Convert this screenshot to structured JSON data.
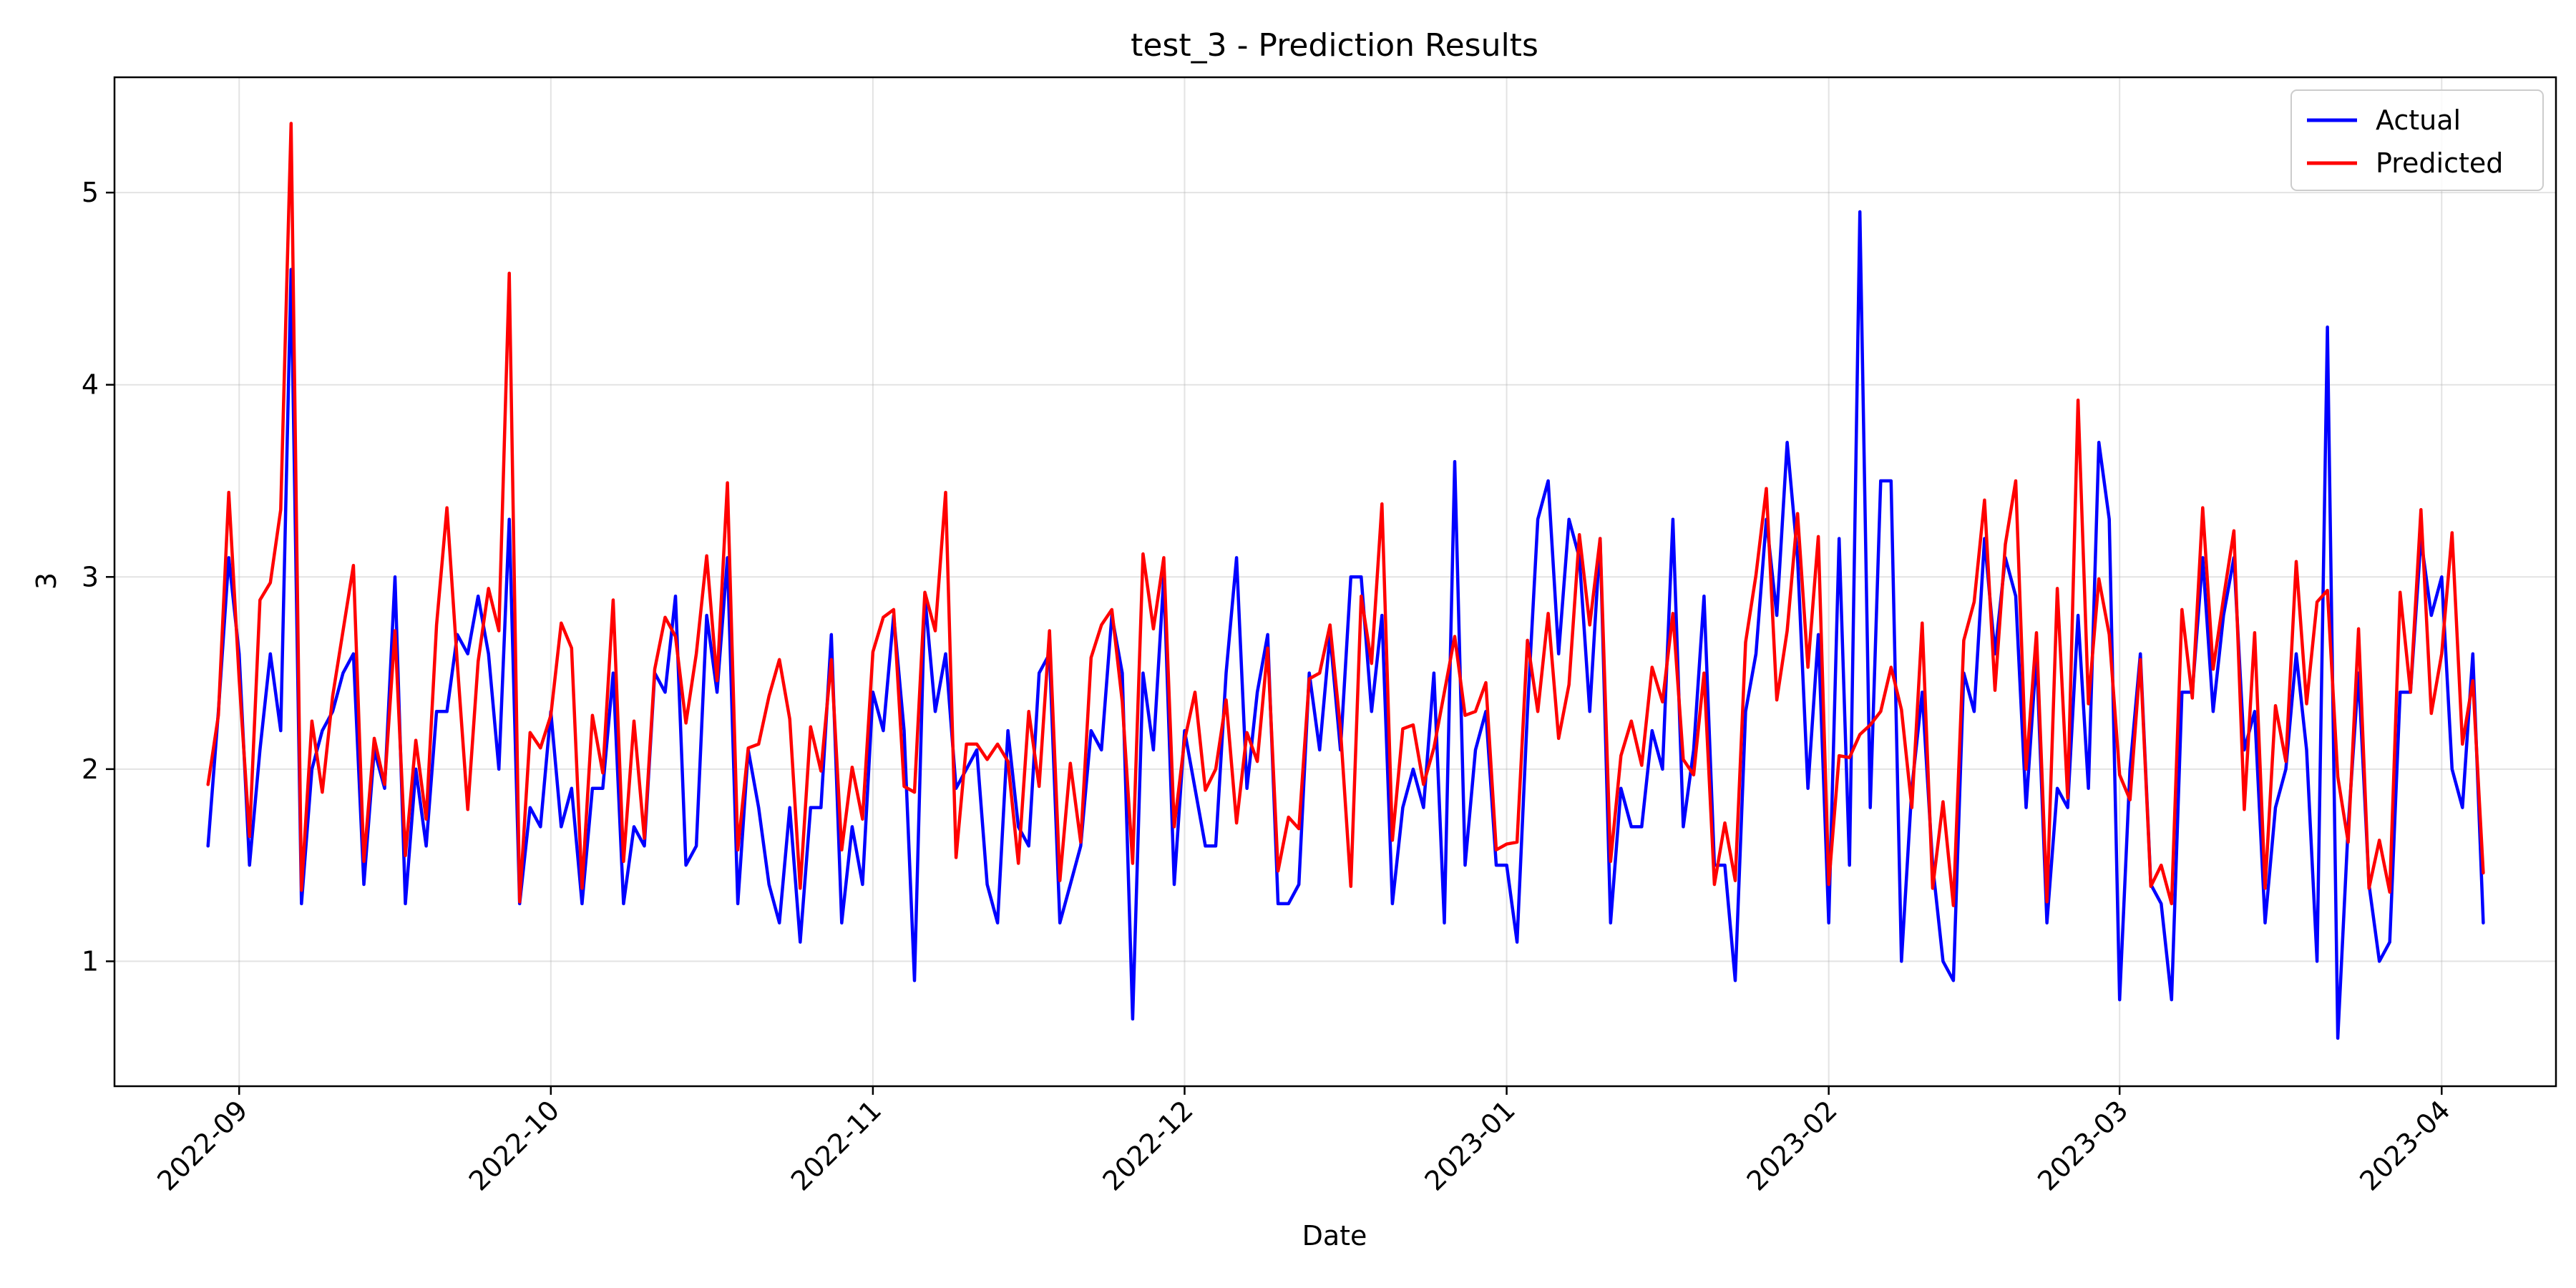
{
  "chart_data": {
    "type": "line",
    "title": "test_3 - Prediction Results",
    "xlabel": "Date",
    "ylabel": "3",
    "x_start": "2022-08-29",
    "x_ticks": [
      "2022-09",
      "2022-10",
      "2022-11",
      "2022-12",
      "2023-01",
      "2023-02",
      "2023-03",
      "2023-04"
    ],
    "x_tick_dates": [
      "2022-09-01",
      "2022-10-01",
      "2022-11-01",
      "2022-12-01",
      "2023-01-01",
      "2023-02-01",
      "2023-03-01",
      "2023-04-01"
    ],
    "y_ticks": [
      1,
      2,
      3,
      4,
      5
    ],
    "xlim": [
      "2022-08-20",
      "2023-04-12"
    ],
    "ylim": [
      0.35,
      5.6
    ],
    "grid": true,
    "legend_position": "top-right",
    "series": [
      {
        "name": "Actual",
        "color": "#0000ff",
        "values": [
          1.6,
          2.3,
          3.1,
          2.6,
          1.5,
          2.1,
          2.6,
          2.2,
          4.6,
          1.3,
          2.0,
          2.2,
          2.3,
          2.5,
          2.6,
          1.4,
          2.1,
          1.9,
          3.0,
          1.3,
          2.0,
          1.6,
          2.3,
          2.3,
          2.7,
          2.6,
          2.9,
          2.6,
          2.0,
          3.3,
          1.3,
          1.8,
          1.7,
          2.3,
          1.7,
          1.9,
          1.3,
          1.9,
          1.9,
          2.5,
          1.3,
          1.7,
          1.6,
          2.5,
          2.4,
          2.9,
          1.5,
          1.6,
          2.8,
          2.4,
          3.1,
          1.3,
          2.1,
          1.8,
          1.4,
          1.2,
          1.8,
          1.1,
          1.8,
          1.8,
          2.7,
          1.2,
          1.7,
          1.4,
          2.4,
          2.2,
          2.8,
          2.2,
          0.9,
          2.9,
          2.3,
          2.6,
          1.9,
          2.0,
          2.1,
          1.4,
          1.2,
          2.2,
          1.7,
          1.6,
          2.5,
          2.6,
          1.2,
          1.4,
          1.6,
          2.2,
          2.1,
          2.8,
          2.5,
          0.7,
          2.5,
          2.1,
          3.0,
          1.4,
          2.2,
          1.9,
          1.6,
          1.6,
          2.5,
          3.1,
          1.9,
          2.4,
          2.7,
          1.3,
          1.3,
          1.4,
          2.5,
          2.1,
          2.7,
          2.1,
          3.0,
          3.0,
          2.3,
          2.8,
          1.3,
          1.8,
          2.0,
          1.8,
          2.5,
          1.2,
          3.6,
          1.5,
          2.1,
          2.3,
          1.5,
          1.5,
          1.1,
          2.3,
          3.3,
          3.5,
          2.6,
          3.3,
          3.1,
          2.3,
          3.2,
          1.2,
          1.9,
          1.7,
          1.7,
          2.2,
          2.0,
          3.3,
          1.7,
          2.1,
          2.9,
          1.5,
          1.5,
          0.9,
          2.3,
          2.6,
          3.3,
          2.8,
          3.7,
          3.1,
          1.9,
          2.7,
          1.2,
          3.2,
          1.5,
          4.9,
          1.8,
          3.5,
          3.5,
          1.0,
          1.9,
          2.4,
          1.5,
          1.0,
          0.9,
          2.5,
          2.3,
          3.2,
          2.6,
          3.1,
          2.9,
          1.8,
          2.6,
          1.2,
          1.9,
          1.8,
          2.8,
          1.9,
          3.7,
          3.3,
          0.8,
          2.0,
          2.6,
          1.4,
          1.3,
          0.8,
          2.4,
          2.4,
          3.1,
          2.3,
          2.8,
          3.1,
          2.1,
          2.3,
          1.2,
          1.8,
          2.0,
          2.6,
          2.1,
          1.0,
          4.3,
          0.6,
          1.7,
          2.5,
          1.4,
          1.0,
          1.1,
          2.4,
          2.4,
          3.2,
          2.8,
          3.0,
          2.0,
          1.8,
          2.6,
          1.2
        ]
      },
      {
        "name": "Predicted",
        "color": "#ff0000",
        "values": [
          1.92,
          2.28,
          3.44,
          2.47,
          1.65,
          2.88,
          2.97,
          3.35,
          5.36,
          1.37,
          2.25,
          1.88,
          2.38,
          2.72,
          3.06,
          1.52,
          2.16,
          1.92,
          2.72,
          1.55,
          2.15,
          1.74,
          2.75,
          3.36,
          2.55,
          1.79,
          2.56,
          2.94,
          2.72,
          4.58,
          1.31,
          2.19,
          2.11,
          2.28,
          2.76,
          2.63,
          1.38,
          2.28,
          1.98,
          2.88,
          1.52,
          2.25,
          1.64,
          2.52,
          2.79,
          2.69,
          2.24,
          2.6,
          3.11,
          2.46,
          3.49,
          1.58,
          2.11,
          2.13,
          2.38,
          2.57,
          2.26,
          1.38,
          2.22,
          1.99,
          2.57,
          1.58,
          2.01,
          1.74,
          2.61,
          2.79,
          2.83,
          1.91,
          1.88,
          2.92,
          2.72,
          3.44,
          1.54,
          2.13,
          2.13,
          2.05,
          2.13,
          2.04,
          1.51,
          2.3,
          1.91,
          2.72,
          1.42,
          2.03,
          1.62,
          2.58,
          2.75,
          2.83,
          2.35,
          1.51,
          3.12,
          2.73,
          3.1,
          1.7,
          2.15,
          2.4,
          1.89,
          2.0,
          2.36,
          1.72,
          2.19,
          2.04,
          2.63,
          1.47,
          1.75,
          1.69,
          2.47,
          2.5,
          2.75,
          2.21,
          1.39,
          2.9,
          2.55,
          3.38,
          1.63,
          2.21,
          2.23,
          1.92,
          2.11,
          2.4,
          2.69,
          2.28,
          2.3,
          2.45,
          1.58,
          1.61,
          1.62,
          2.67,
          2.3,
          2.81,
          2.16,
          2.44,
          3.22,
          2.75,
          3.2,
          1.52,
          2.07,
          2.25,
          2.02,
          2.53,
          2.35,
          2.81,
          2.05,
          1.97,
          2.5,
          1.4,
          1.72,
          1.42,
          2.66,
          3.01,
          3.46,
          2.36,
          2.72,
          3.33,
          2.53,
          3.21,
          1.4,
          2.07,
          2.06,
          2.18,
          2.23,
          2.3,
          2.53,
          2.31,
          1.8,
          2.76,
          1.38,
          1.83,
          1.29,
          2.67,
          2.87,
          3.4,
          2.41,
          3.17,
          3.5,
          2.0,
          2.71,
          1.31,
          2.94,
          1.85,
          3.92,
          2.34,
          2.99,
          2.7,
          1.97,
          1.84,
          2.57,
          1.39,
          1.5,
          1.3,
          2.83,
          2.37,
          3.36,
          2.52,
          2.89,
          3.24,
          1.79,
          2.71,
          1.38,
          2.33,
          2.04,
          3.08,
          2.34,
          2.87,
          2.93,
          1.96,
          1.62,
          2.73,
          1.38,
          1.63,
          1.36,
          2.92,
          2.4,
          3.35,
          2.29,
          2.6,
          3.23,
          2.13,
          2.46,
          1.46
        ]
      }
    ]
  }
}
